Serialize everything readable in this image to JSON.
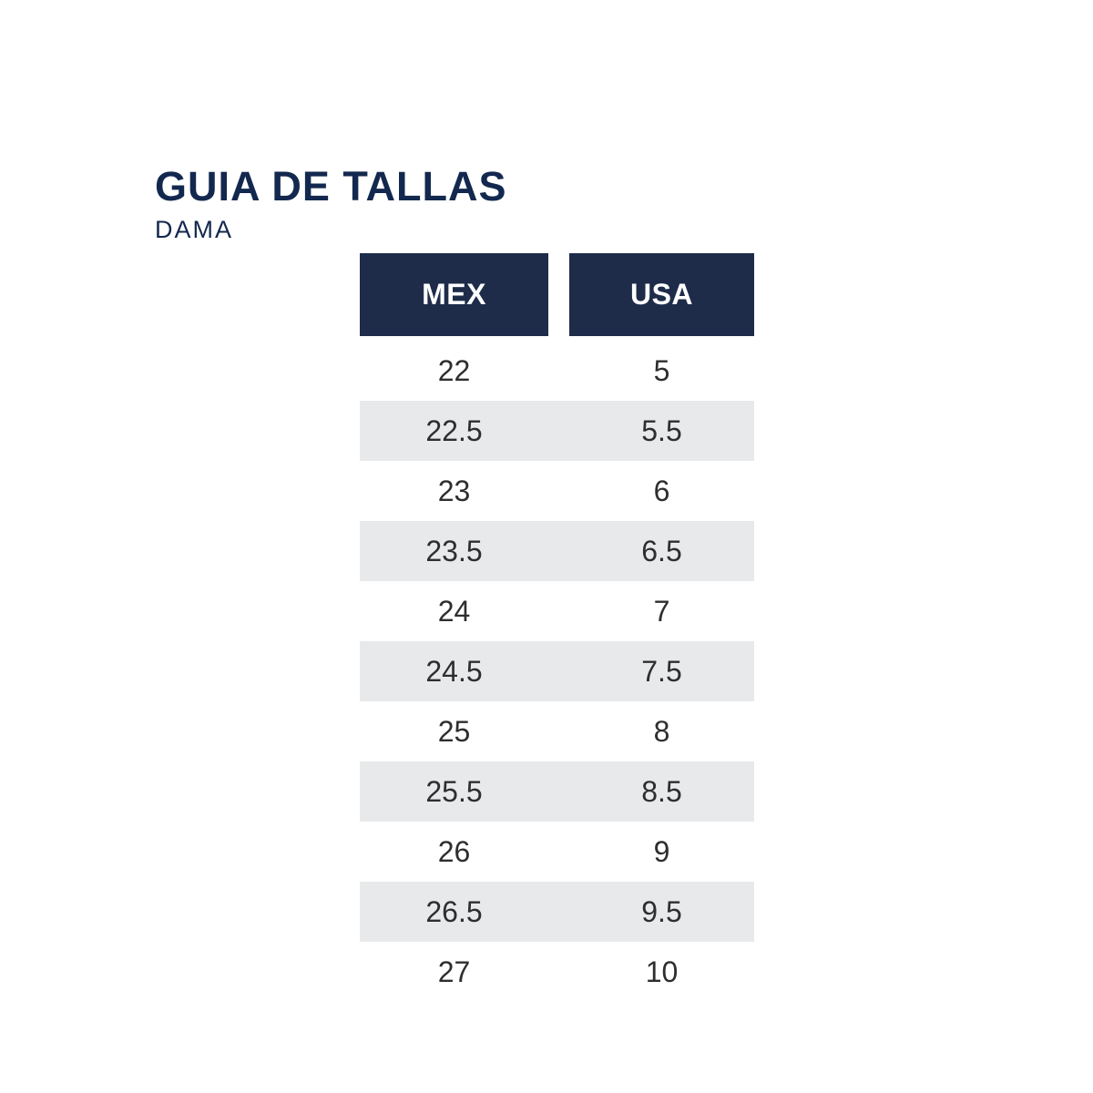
{
  "chart_data": {
    "type": "table",
    "title": "GUIA DE TALLAS",
    "subtitle": "DAMA",
    "columns": [
      "MEX",
      "USA"
    ],
    "rows": [
      [
        "22",
        "5"
      ],
      [
        "22.5",
        "5.5"
      ],
      [
        "23",
        "6"
      ],
      [
        "23.5",
        "6.5"
      ],
      [
        "24",
        "7"
      ],
      [
        "24.5",
        "7.5"
      ],
      [
        "25",
        "8"
      ],
      [
        "25.5",
        "8.5"
      ],
      [
        "26",
        "9"
      ],
      [
        "26.5",
        "9.5"
      ],
      [
        "27",
        "10"
      ]
    ],
    "layout_hints": {
      "stripe_pattern": "even rows shaded, starting from second row",
      "header_style": "two separate filled navy boxes"
    }
  },
  "colors": {
    "title_text": "#13284e",
    "header_bg": "#1e2c4a",
    "header_text": "#ffffff",
    "stripe_bg": "#e8e9ea",
    "row_text": "#2e2e2e",
    "page_bg": "#ffffff"
  }
}
